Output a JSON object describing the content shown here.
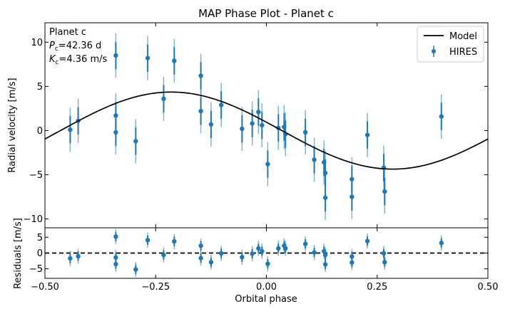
{
  "chart_data": [
    {
      "type": "scatter",
      "panel": "main",
      "title": "MAP Phase Plot - Planet c",
      "xlabel": "",
      "ylabel": "Radial velocity [m/s]",
      "xlim": [
        -0.5,
        0.5
      ],
      "ylim": [
        -11.0,
        12.2
      ],
      "yticks": [
        -10,
        -5,
        0,
        5,
        10
      ],
      "legend_location": "upper right",
      "legend": [
        {
          "label": "Model",
          "kind": "line"
        },
        {
          "label": "HIRES",
          "kind": "errorbar"
        }
      ],
      "annotation": {
        "planet": "Planet c",
        "period": "=42.36 d",
        "amplitude": "=4.36 m/s",
        "p_sym": "P",
        "k_sym": "K",
        "sub": "c"
      },
      "model": {
        "name": "Model",
        "color": "#000000",
        "amplitude": 4.36,
        "phase_of_max": -0.215,
        "sample_x": [
          -0.5,
          -0.25,
          0.0,
          0.25,
          0.5
        ],
        "sample_y": [
          0.6,
          4.1,
          0.8,
          -4.4,
          0.6
        ]
      },
      "series": [
        {
          "name": "HIRES",
          "color": "#1f77b4",
          "x": [
            -0.443,
            -0.425,
            -0.34,
            -0.34,
            -0.34,
            -0.295,
            -0.268,
            -0.232,
            -0.208,
            -0.148,
            -0.148,
            -0.125,
            -0.102,
            -0.055,
            -0.032,
            -0.018,
            -0.01,
            0.003,
            0.027,
            0.04,
            0.043,
            0.088,
            0.108,
            0.13,
            0.133,
            0.133,
            0.193,
            0.193,
            0.228,
            0.265,
            0.267,
            0.395
          ],
          "y": [
            0.1,
            1.1,
            8.5,
            1.7,
            -0.2,
            -1.2,
            8.2,
            3.6,
            7.9,
            6.2,
            2.2,
            0.7,
            2.9,
            0.2,
            0.8,
            2.1,
            0.6,
            -3.8,
            0.3,
            0.4,
            -0.4,
            -0.2,
            -3.3,
            -3.6,
            -4.8,
            -7.6,
            -5.5,
            -7.5,
            -0.5,
            -4.2,
            -6.9,
            1.6
          ],
          "yerr": [
            2.5,
            2.5,
            2.5,
            2.5,
            2.5,
            2.5,
            2.5,
            2.5,
            2.5,
            2.5,
            2.5,
            2.5,
            2.5,
            2.5,
            2.5,
            2.5,
            2.5,
            2.5,
            2.5,
            2.5,
            2.5,
            2.5,
            2.5,
            2.5,
            2.5,
            2.5,
            2.5,
            2.5,
            2.5,
            2.5,
            2.5,
            2.5
          ]
        }
      ]
    },
    {
      "type": "scatter",
      "panel": "residuals",
      "xlabel": "Orbital phase",
      "ylabel": "Residuals [m/s]",
      "xlim": [
        -0.5,
        0.5
      ],
      "ylim": [
        -8.0,
        8.0
      ],
      "xticks": [
        -0.5,
        -0.25,
        0.0,
        0.25,
        0.5
      ],
      "xtick_labels": [
        "−0.50",
        "−0.25",
        "0.00",
        "0.25",
        "0.50"
      ],
      "yticks": [
        -5,
        0,
        5
      ],
      "zero_line": {
        "y": 0,
        "style": "dashed",
        "color": "#000000"
      },
      "series": [
        {
          "name": "HIRES",
          "color": "#1f77b4",
          "x": [
            -0.443,
            -0.425,
            -0.34,
            -0.34,
            -0.34,
            -0.295,
            -0.268,
            -0.232,
            -0.208,
            -0.148,
            -0.148,
            -0.125,
            -0.102,
            -0.055,
            -0.032,
            -0.018,
            -0.01,
            0.003,
            0.027,
            0.04,
            0.043,
            0.088,
            0.108,
            0.13,
            0.133,
            0.133,
            0.193,
            0.193,
            0.228,
            0.265,
            0.267,
            0.395
          ],
          "y": [
            -1.7,
            -1.0,
            5.2,
            -1.4,
            -3.5,
            -5.2,
            4.1,
            -0.6,
            3.7,
            2.3,
            -1.6,
            -2.9,
            -0.1,
            -1.3,
            -0.2,
            1.5,
            0.6,
            -3.4,
            1.5,
            2.3,
            1.5,
            2.9,
            0.2,
            0.6,
            -0.6,
            -3.6,
            -1.1,
            -3.0,
            3.8,
            -0.1,
            -2.9,
            3.2
          ],
          "yerr": [
            2.4,
            2.4,
            2.4,
            2.4,
            2.4,
            2.4,
            2.4,
            2.4,
            2.4,
            2.4,
            2.4,
            2.4,
            2.4,
            2.4,
            2.4,
            2.4,
            2.4,
            2.4,
            2.4,
            2.4,
            2.4,
            2.4,
            2.4,
            2.4,
            2.4,
            2.4,
            2.4,
            2.4,
            2.4,
            2.4,
            2.4,
            2.4
          ]
        }
      ]
    }
  ]
}
